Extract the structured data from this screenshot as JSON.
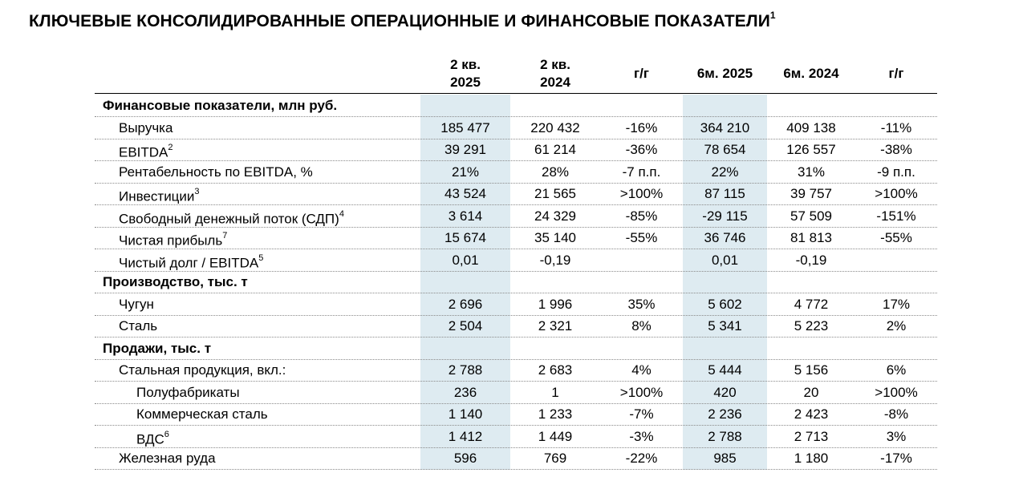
{
  "title": {
    "text": "КЛЮЧЕВЫЕ КОНСОЛИДИРОВАННЫЕ ОПЕРАЦИОННЫЕ И ФИНАНСОВЫЕ ПОКАЗАТЕЛИ",
    "footnote": "1"
  },
  "columns": [
    {
      "line1": "2 кв.",
      "line2": "2025"
    },
    {
      "line1": "2 кв.",
      "line2": "2024"
    },
    {
      "line1": "",
      "line2": "г/г"
    },
    {
      "line1": "",
      "line2": "6м. 2025"
    },
    {
      "line1": "",
      "line2": "6м. 2024"
    },
    {
      "line1": "",
      "line2": "г/г"
    }
  ],
  "rows": [
    {
      "type": "section",
      "label": "Финансовые показатели, млн руб.",
      "sup": "",
      "level": 0,
      "values": [
        "",
        "",
        "",
        "",
        "",
        ""
      ]
    },
    {
      "type": "data",
      "label": "Выручка",
      "sup": "",
      "level": 1,
      "values": [
        "185 477",
        "220 432",
        "-16%",
        "364 210",
        "409 138",
        "-11%"
      ]
    },
    {
      "type": "data",
      "label": "EBITDA",
      "sup": "2",
      "level": 1,
      "values": [
        "39 291",
        "61 214",
        "-36%",
        "78 654",
        "126 557",
        "-38%"
      ]
    },
    {
      "type": "data",
      "label": "Рентабельность по EBITDA, %",
      "sup": "",
      "level": 1,
      "values": [
        "21%",
        "28%",
        "-7 п.п.",
        "22%",
        "31%",
        "-9 п.п."
      ]
    },
    {
      "type": "data",
      "label": "Инвестиции",
      "sup": "3",
      "level": 1,
      "values": [
        "43 524",
        "21 565",
        ">100%",
        "87 115",
        "39 757",
        ">100%"
      ]
    },
    {
      "type": "data",
      "label": "Свободный денежный поток (СДП)",
      "sup": "4",
      "level": 1,
      "values": [
        "3 614",
        "24 329",
        "-85%",
        "-29 115",
        "57 509",
        "-151%"
      ]
    },
    {
      "type": "data",
      "label": "Чистая прибыль",
      "sup": "7",
      "level": 1,
      "values": [
        "15 674",
        "35 140",
        "-55%",
        "36 746",
        "81 813",
        "-55%"
      ]
    },
    {
      "type": "data",
      "label": "Чистый долг / EBITDA",
      "sup": "5",
      "level": 1,
      "values": [
        "0,01",
        "-0,19",
        "",
        "0,01",
        "-0,19",
        ""
      ]
    },
    {
      "type": "section",
      "label": "Производство, тыс. т",
      "sup": "",
      "level": 0,
      "values": [
        "",
        "",
        "",
        "",
        "",
        ""
      ]
    },
    {
      "type": "data",
      "label": "Чугун",
      "sup": "",
      "level": 1,
      "values": [
        "2 696",
        "1 996",
        "35%",
        "5 602",
        "4 772",
        "17%"
      ]
    },
    {
      "type": "data",
      "label": "Сталь",
      "sup": "",
      "level": 1,
      "values": [
        "2 504",
        "2 321",
        "8%",
        "5 341",
        "5 223",
        "2%"
      ]
    },
    {
      "type": "section",
      "label": "Продажи, тыс. т",
      "sup": "",
      "level": 0,
      "values": [
        "",
        "",
        "",
        "",
        "",
        ""
      ]
    },
    {
      "type": "data",
      "label": "Стальная продукция, вкл.:",
      "sup": "",
      "level": 1,
      "values": [
        "2 788",
        "2 683",
        "4%",
        "5 444",
        "5 156",
        "6%"
      ]
    },
    {
      "type": "data",
      "label": "Полуфабрикаты",
      "sup": "",
      "level": 2,
      "values": [
        "236",
        "1",
        ">100%",
        "420",
        "20",
        ">100%"
      ]
    },
    {
      "type": "data",
      "label": "Коммерческая сталь",
      "sup": "",
      "level": 2,
      "values": [
        "1 140",
        "1 233",
        "-7%",
        "2 236",
        "2 423",
        "-8%"
      ]
    },
    {
      "type": "data",
      "label": "ВДС",
      "sup": "6",
      "level": 2,
      "values": [
        "1 412",
        "1 449",
        "-3%",
        "2 788",
        "2 713",
        "3%"
      ]
    },
    {
      "type": "data",
      "label": "Железная руда",
      "sup": "",
      "level": 1,
      "values": [
        "596",
        "769",
        "-22%",
        "985",
        "1 180",
        "-17%"
      ]
    }
  ]
}
